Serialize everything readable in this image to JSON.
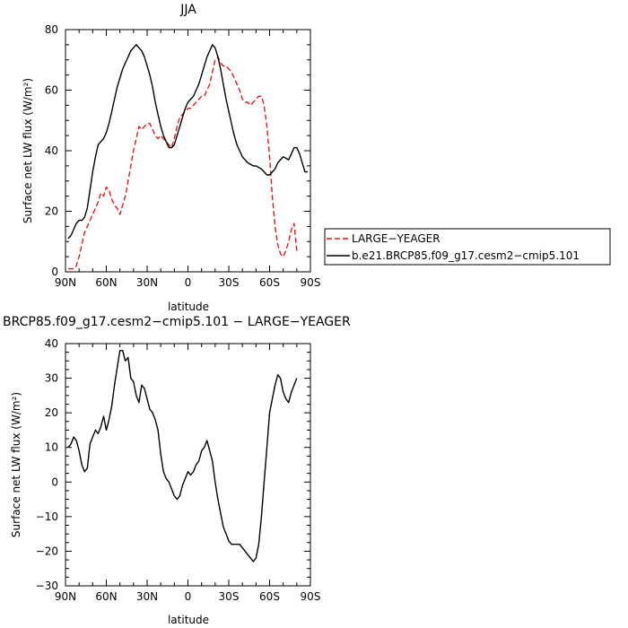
{
  "colors": {
    "large_yeager": "#e8191c",
    "cesm": "#000000"
  },
  "chart_data": [
    {
      "type": "line",
      "title": "JJA",
      "xlabel": "latitude",
      "ylabel": "Surface net LW flux (W/m²)",
      "xlim": [
        90,
        -90
      ],
      "ylim": [
        0,
        80
      ],
      "x_ticks": [
        90,
        60,
        30,
        0,
        -30,
        -60,
        -90
      ],
      "x_tick_labels": [
        "90N",
        "60N",
        "30N",
        "0",
        "30S",
        "60S",
        "90S"
      ],
      "y_ticks": [
        0,
        20,
        40,
        60,
        80
      ],
      "y_tick_labels": [
        "0",
        "20",
        "40",
        "60",
        "80"
      ],
      "grid": false,
      "legend_position": "right",
      "series": [
        {
          "name": "LARGE−YEAGER",
          "color": "#e8191c",
          "dash": "dashed",
          "x": [
            88,
            86,
            84,
            82,
            80,
            78,
            76,
            74,
            72,
            70,
            68,
            66,
            64,
            62,
            60,
            58,
            56,
            54,
            52,
            50,
            48,
            46,
            44,
            42,
            40,
            38,
            36,
            34,
            32,
            30,
            28,
            26,
            24,
            22,
            20,
            18,
            16,
            14,
            12,
            10,
            8,
            6,
            4,
            2,
            0,
            -2,
            -4,
            -6,
            -8,
            -10,
            -12,
            -14,
            -16,
            -18,
            -20,
            -22,
            -24,
            -26,
            -28,
            -30,
            -32,
            -34,
            -36,
            -38,
            -40,
            -42,
            -44,
            -46,
            -48,
            -50,
            -52,
            -54,
            -56,
            -58,
            -60,
            -62,
            -64,
            -66,
            -68,
            -70,
            -72,
            -74,
            -76,
            -78,
            -80
          ],
          "y": [
            1,
            1,
            1,
            2,
            5,
            9,
            13,
            15,
            17,
            19,
            21,
            23,
            26,
            25,
            28,
            27,
            24,
            22,
            21,
            19,
            22,
            25,
            30,
            35,
            40,
            44,
            48,
            47,
            48,
            49,
            49,
            47,
            45,
            44,
            45,
            44,
            43,
            42,
            41,
            44,
            48,
            51,
            52,
            53,
            54,
            54,
            55,
            56,
            57,
            58,
            58,
            60,
            62,
            66,
            70,
            71,
            69,
            68,
            68,
            67,
            66,
            64,
            62,
            60,
            57,
            56,
            56,
            55,
            56,
            57,
            58,
            58,
            55,
            48,
            38,
            25,
            15,
            9,
            6,
            5,
            7,
            10,
            14,
            16,
            7
          ]
        },
        {
          "name": "b.e21.BRCP85.f09_g17.cesm2−cmip5.101",
          "color": "#000000",
          "dash": "solid",
          "x": [
            88,
            86,
            84,
            82,
            80,
            78,
            76,
            74,
            72,
            70,
            68,
            66,
            64,
            62,
            60,
            58,
            56,
            54,
            52,
            50,
            48,
            46,
            44,
            42,
            40,
            38,
            36,
            34,
            32,
            30,
            28,
            26,
            24,
            22,
            20,
            18,
            16,
            14,
            12,
            10,
            8,
            6,
            4,
            2,
            0,
            -2,
            -4,
            -6,
            -8,
            -10,
            -12,
            -14,
            -16,
            -18,
            -20,
            -22,
            -24,
            -26,
            -28,
            -30,
            -32,
            -34,
            -36,
            -38,
            -40,
            -42,
            -44,
            -46,
            -48,
            -50,
            -52,
            -54,
            -56,
            -58,
            -60,
            -62,
            -64,
            -66,
            -68,
            -70,
            -72,
            -74,
            -76,
            -78,
            -80,
            -82,
            -84,
            -86,
            -88
          ],
          "y": [
            11,
            12,
            14,
            16,
            17,
            17,
            18,
            21,
            27,
            33,
            38,
            42,
            43,
            44,
            46,
            49,
            53,
            57,
            61,
            64,
            67,
            69,
            71,
            73,
            74,
            75,
            74,
            73,
            71,
            68,
            65,
            61,
            56,
            52,
            48,
            45,
            43,
            41,
            41,
            42,
            45,
            48,
            51,
            54,
            56,
            57,
            58,
            60,
            62,
            65,
            68,
            71,
            73,
            75,
            74,
            71,
            67,
            62,
            57,
            53,
            49,
            45,
            42,
            40,
            38,
            37,
            36,
            35.5,
            35,
            35,
            34.5,
            34,
            33,
            32,
            32,
            33,
            34,
            36,
            37,
            38,
            37.5,
            37,
            39,
            41,
            41,
            39,
            36,
            33,
            33
          ]
        }
      ]
    },
    {
      "type": "line",
      "title": "BRCP85.f09_g17.cesm2−cmip5.101 − LARGE−YEAGER",
      "xlabel": "latitude",
      "ylabel": "Surface net LW flux (W/m²)",
      "xlim": [
        90,
        -90
      ],
      "ylim": [
        -30,
        40
      ],
      "x_ticks": [
        90,
        60,
        30,
        0,
        -30,
        -60,
        -90
      ],
      "x_tick_labels": [
        "90N",
        "60N",
        "30N",
        "0",
        "30S",
        "60S",
        "90S"
      ],
      "y_ticks": [
        -30,
        -20,
        -10,
        0,
        10,
        20,
        30,
        40
      ],
      "y_tick_labels": [
        "−30",
        "−20",
        "−10",
        "0",
        "10",
        "20",
        "30",
        "40"
      ],
      "grid": false,
      "series": [
        {
          "color": "#000000",
          "dash": "solid",
          "x": [
            88,
            86,
            84,
            82,
            80,
            78,
            76,
            74,
            72,
            70,
            68,
            66,
            64,
            62,
            60,
            58,
            56,
            54,
            52,
            50,
            48,
            46,
            44,
            42,
            40,
            38,
            36,
            34,
            32,
            30,
            28,
            26,
            24,
            22,
            20,
            18,
            16,
            14,
            12,
            10,
            8,
            6,
            4,
            2,
            0,
            -2,
            -4,
            -6,
            -8,
            -10,
            -12,
            -14,
            -16,
            -18,
            -20,
            -22,
            -24,
            -26,
            -28,
            -30,
            -32,
            -34,
            -36,
            -38,
            -40,
            -42,
            -44,
            -46,
            -48,
            -50,
            -52,
            -54,
            -56,
            -58,
            -60,
            -62,
            -64,
            -66,
            -68,
            -70,
            -72,
            -74,
            -76,
            -78,
            -80
          ],
          "y": [
            10,
            11,
            13,
            12,
            9,
            5,
            3,
            4,
            11,
            13,
            15,
            14,
            16,
            19,
            15,
            18,
            22,
            28,
            33,
            38,
            38,
            35,
            36,
            30,
            29,
            25,
            23,
            28,
            27,
            24,
            21,
            20,
            18,
            15,
            8,
            3,
            1,
            0,
            -2,
            -4,
            -5,
            -4,
            -1,
            1,
            3,
            2,
            3,
            5,
            6,
            9,
            10,
            12,
            9,
            6,
            0,
            -5,
            -9,
            -13,
            -15,
            -17,
            -18,
            -18,
            -18,
            -18,
            -19,
            -20,
            -21,
            -22,
            -23,
            -22,
            -18,
            -10,
            0,
            10,
            20,
            24,
            28,
            31,
            30,
            26,
            24,
            23,
            26,
            28,
            30
          ]
        }
      ]
    }
  ]
}
